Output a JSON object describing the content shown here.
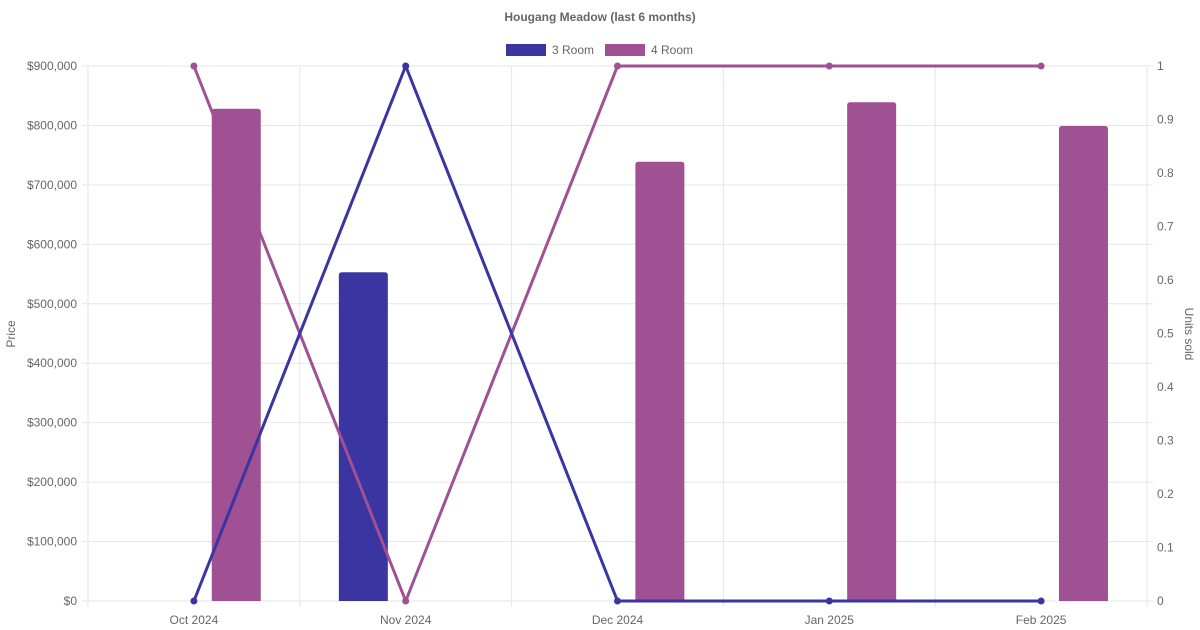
{
  "chart_data": {
    "type": "bar",
    "title": "Hougang Meadow (last 6 months)",
    "categories": [
      "Oct 2024",
      "Nov 2024",
      "Dec 2024",
      "Jan 2025",
      "Feb 2025"
    ],
    "series": [
      {
        "name": "3 Room",
        "kind": "bar",
        "axis": "price",
        "color": "#3a35a1",
        "values": [
          null,
          553000,
          null,
          null,
          null
        ]
      },
      {
        "name": "4 Room",
        "kind": "bar",
        "axis": "price",
        "color": "#9f5193",
        "values": [
          828000,
          null,
          739000,
          839000,
          799000
        ]
      },
      {
        "kind": "line",
        "axis": "units",
        "color": "#3a35a1",
        "values": [
          0,
          1,
          0,
          0,
          0
        ]
      },
      {
        "kind": "line",
        "axis": "units",
        "color": "#9f5193",
        "values": [
          1,
          0,
          1,
          1,
          1
        ]
      }
    ],
    "y_left": {
      "label": "Price",
      "ylim": [
        0,
        900000
      ],
      "ticks": [
        0,
        100000,
        200000,
        300000,
        400000,
        500000,
        600000,
        700000,
        800000,
        900000
      ],
      "tick_labels": [
        "$0",
        "$100,000",
        "$200,000",
        "$300,000",
        "$400,000",
        "$500,000",
        "$600,000",
        "$700,000",
        "$800,000",
        "$900,000"
      ]
    },
    "y_right": {
      "label": "Units sold",
      "ylim": [
        0,
        1
      ],
      "ticks": [
        0,
        0.1,
        0.2,
        0.3,
        0.4,
        0.5,
        0.6,
        0.7,
        0.8,
        0.9,
        1
      ],
      "tick_labels": [
        "0",
        "0.1",
        "0.2",
        "0.3",
        "0.4",
        "0.5",
        "0.6",
        "0.7",
        "0.8",
        "0.9",
        "1"
      ]
    },
    "grid": true,
    "legend": {
      "position": "top",
      "entries": [
        "3 Room",
        "4 Room"
      ]
    }
  }
}
